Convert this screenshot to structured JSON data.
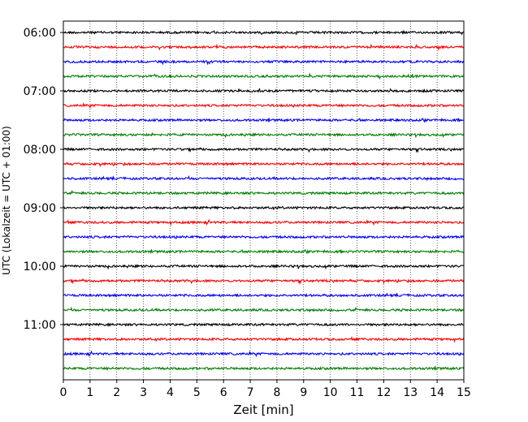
{
  "chart_data": {
    "type": "line",
    "title": "",
    "xlabel": "Zeit  [min]",
    "ylabel": "UTC (Lokalzeit = UTC + 01:00)",
    "xlim": [
      0,
      15
    ],
    "x_ticks": [
      "0",
      "1",
      "2",
      "3",
      "4",
      "5",
      "6",
      "7",
      "8",
      "9",
      "10",
      "11",
      "12",
      "13",
      "14",
      "15"
    ],
    "y_ticks": [
      "06:00",
      "07:00",
      "08:00",
      "09:00",
      "10:00",
      "11:00"
    ],
    "trace_interval_minutes": 15,
    "trace_start": "06:00",
    "trace_count": 24,
    "trace_colors": [
      "#000000",
      "#ff0000",
      "#0000ff",
      "#008000"
    ],
    "grid": "vertical dotted at each minute",
    "legend": "none"
  }
}
